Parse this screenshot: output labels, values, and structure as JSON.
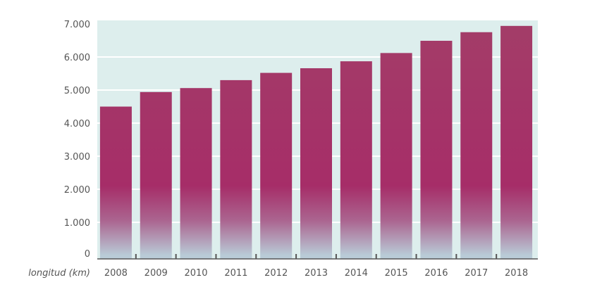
{
  "chart_data": {
    "type": "bar",
    "title": "",
    "xlabel": "longitud (km)",
    "ylabel": "",
    "categories": [
      "2008",
      "2009",
      "2010",
      "2011",
      "2012",
      "2013",
      "2014",
      "2015",
      "2016",
      "2017",
      "2018"
    ],
    "values": [
      4500,
      4940,
      5060,
      5300,
      5520,
      5660,
      5870,
      6120,
      6490,
      6750,
      6940
    ],
    "ylim": [
      0,
      7000
    ],
    "yticks": [
      0,
      1000,
      2000,
      3000,
      4000,
      5000,
      6000,
      7000
    ],
    "ytick_labels": [
      "0",
      "1.000",
      "2.000",
      "3.000",
      "4.000",
      "5.000",
      "6.000",
      "7.000"
    ],
    "grid": true,
    "legend": "none",
    "colors": {
      "bar_top": "#a33d68",
      "bar_mid": "#a62d68",
      "bar_bottom": "#b9cbd7",
      "plot_bg": "#ddeeed",
      "grid": "#ffffff",
      "axis": "#555555"
    }
  }
}
